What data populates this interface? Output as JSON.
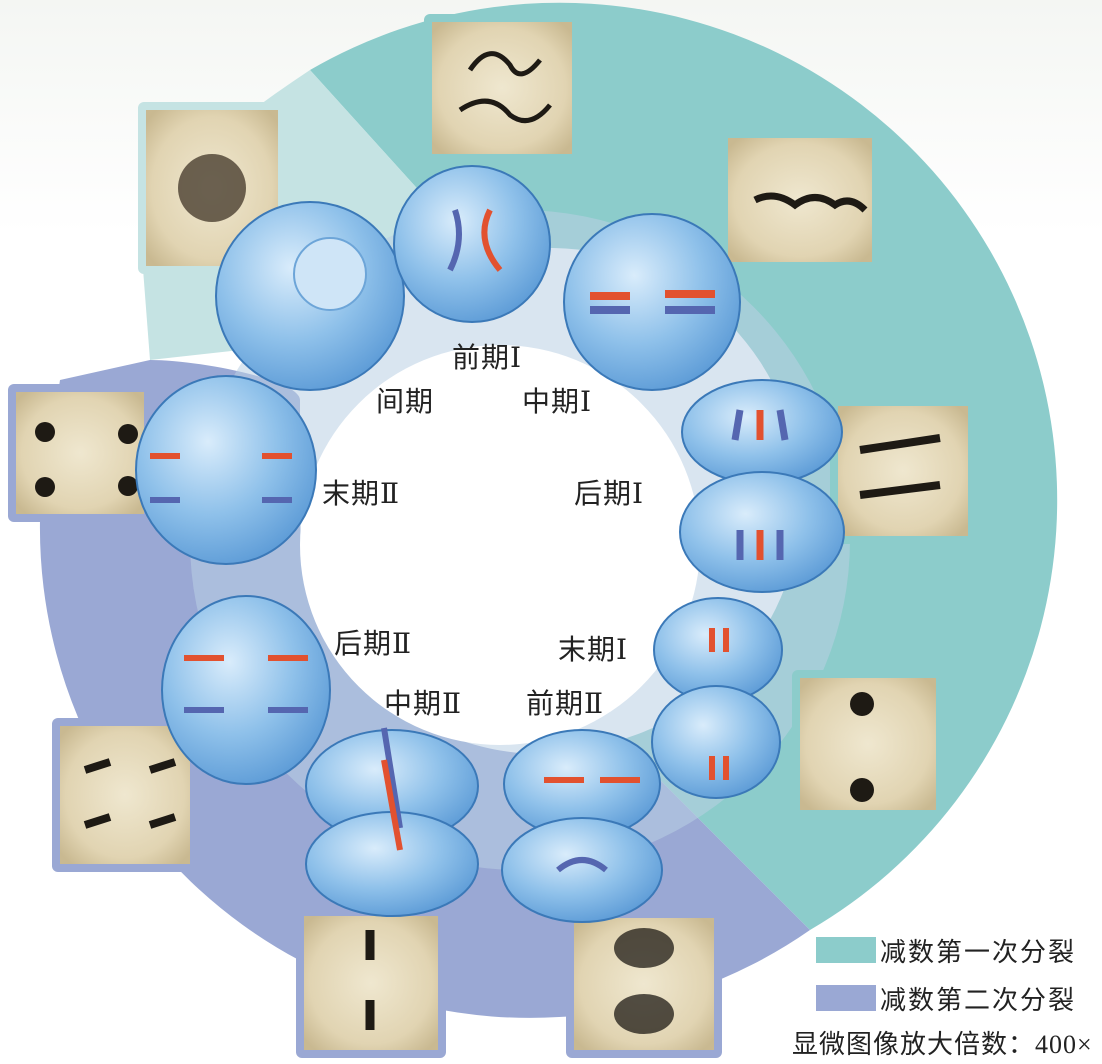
{
  "labels": {
    "interphase": "间期",
    "prophase1": "前期Ⅰ",
    "metaphase1": "中期Ⅰ",
    "anaphase1": "后期Ⅰ",
    "telophase1": "末期Ⅰ",
    "prophase2": "前期Ⅱ",
    "metaphase2": "中期Ⅱ",
    "anaphase2": "后期Ⅱ",
    "telophase2": "末期Ⅱ"
  },
  "legend": {
    "meiosis1": {
      "label": "减数第一次分裂",
      "color": "#8ccccb"
    },
    "meiosis2": {
      "label": "减数第二次分裂",
      "color": "#9aa8d4"
    }
  },
  "magnification": "显微图像放大倍数：400×",
  "colors": {
    "interphase_ring": "#c5e3e3",
    "ring_inner": "#cfe1ea",
    "cell_fill": "#7fb6e4",
    "cell_stroke": "#3b79b8",
    "chromosome_red": "#e2512f",
    "chromosome_blue": "#5566b0",
    "micrograph_bg": "#e6dcc2",
    "micrograph_dark": "#1e1a14"
  },
  "icons": [
    "cell-icon",
    "chromosome-icon",
    "micrograph-icon"
  ]
}
